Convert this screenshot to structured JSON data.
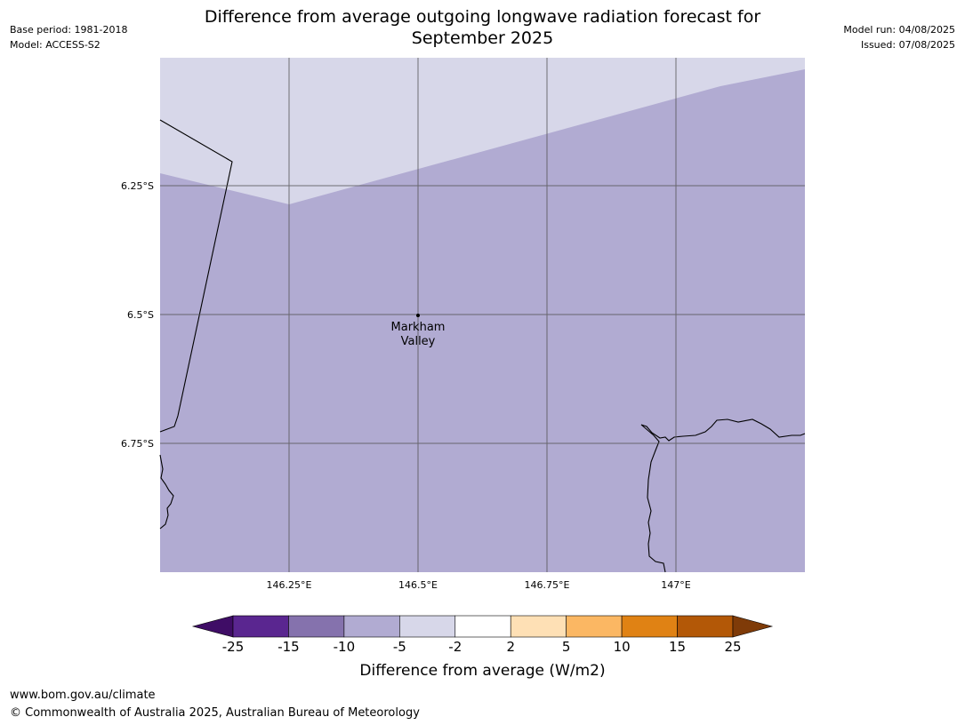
{
  "header": {
    "base_period": "Base period: 1981-2018",
    "model": "Model: ACCESS-S2",
    "model_run": "Model run: 04/08/2025",
    "issued": "Issued: 07/08/2025",
    "title_line1": "Difference from average outgoing longwave radiation forecast for",
    "title_line2": "September 2025"
  },
  "map": {
    "colors": {
      "light_region": "#d7d7e9",
      "main_region": "#b1abd2",
      "gridline": "#555555",
      "coastline": "#000000"
    },
    "longitudes": [
      "146.25°E",
      "146.5°E",
      "146.75°E",
      "147°E"
    ],
    "latitudes": [
      "6.25°S",
      "6.5°S",
      "6.75°S"
    ],
    "place": {
      "name_line1": "Markham",
      "name_line2": "Valley"
    }
  },
  "colorbar": {
    "ticks": [
      "-25",
      "-15",
      "-10",
      "-5",
      "-2",
      "2",
      "5",
      "10",
      "15",
      "25"
    ],
    "colors": [
      "#3f0d66",
      "#5a2690",
      "#8572ad",
      "#b1abd2",
      "#d7d7e9",
      "#ffffff",
      "#fee0b5",
      "#fbb763",
      "#e08214",
      "#b35807",
      "#7f3b08"
    ],
    "label": "Difference from average (W/m2)"
  },
  "footer": {
    "url": "www.bom.gov.au/climate",
    "copyright": "© Commonwealth of Australia 2025, Australian Bureau of Meteorology"
  }
}
